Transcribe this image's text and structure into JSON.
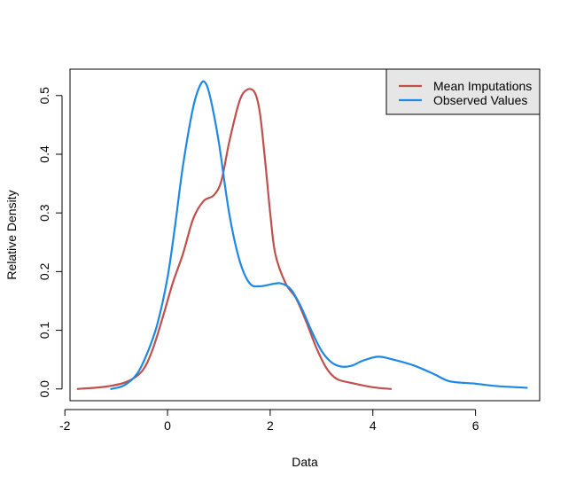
{
  "chart_data": {
    "type": "line",
    "title": "",
    "xlabel": "Data",
    "ylabel": "Relative Density",
    "xlim": [
      -2,
      7
    ],
    "ylim": [
      0,
      0.5
    ],
    "x_ticks": [
      -2,
      0,
      2,
      4,
      6
    ],
    "x_tick_labels": [
      "-2",
      "0",
      "2",
      "4",
      "6"
    ],
    "y_ticks": [
      0.0,
      0.1,
      0.2,
      0.3,
      0.4,
      0.5
    ],
    "y_tick_labels": [
      "0.0",
      "0.1",
      "0.2",
      "0.3",
      "0.4",
      "0.5"
    ],
    "grid": false,
    "legend_position": "top-right",
    "series": [
      {
        "name": "Mean Imputations",
        "color": "#c0504d",
        "points": [
          [
            -1.75,
            0.0
          ],
          [
            -1.2,
            0.004
          ],
          [
            -0.8,
            0.012
          ],
          [
            -0.5,
            0.03
          ],
          [
            -0.3,
            0.065
          ],
          [
            -0.1,
            0.12
          ],
          [
            0.1,
            0.18
          ],
          [
            0.3,
            0.23
          ],
          [
            0.5,
            0.29
          ],
          [
            0.7,
            0.32
          ],
          [
            0.9,
            0.33
          ],
          [
            1.05,
            0.355
          ],
          [
            1.2,
            0.42
          ],
          [
            1.4,
            0.49
          ],
          [
            1.55,
            0.51
          ],
          [
            1.7,
            0.505
          ],
          [
            1.8,
            0.47
          ],
          [
            1.9,
            0.39
          ],
          [
            2.0,
            0.3
          ],
          [
            2.1,
            0.23
          ],
          [
            2.3,
            0.18
          ],
          [
            2.5,
            0.155
          ],
          [
            2.7,
            0.115
          ],
          [
            2.9,
            0.07
          ],
          [
            3.1,
            0.035
          ],
          [
            3.3,
            0.017
          ],
          [
            3.6,
            0.01
          ],
          [
            4.0,
            0.003
          ],
          [
            4.35,
            0.0
          ]
        ]
      },
      {
        "name": "Observed Values",
        "color": "#1e88e5",
        "points": [
          [
            -1.1,
            0.0
          ],
          [
            -0.85,
            0.006
          ],
          [
            -0.6,
            0.025
          ],
          [
            -0.4,
            0.06
          ],
          [
            -0.2,
            0.11
          ],
          [
            0.0,
            0.19
          ],
          [
            0.15,
            0.28
          ],
          [
            0.3,
            0.38
          ],
          [
            0.5,
            0.48
          ],
          [
            0.65,
            0.52
          ],
          [
            0.75,
            0.52
          ],
          [
            0.85,
            0.49
          ],
          [
            1.0,
            0.42
          ],
          [
            1.2,
            0.3
          ],
          [
            1.4,
            0.22
          ],
          [
            1.6,
            0.18
          ],
          [
            1.8,
            0.175
          ],
          [
            2.0,
            0.178
          ],
          [
            2.2,
            0.18
          ],
          [
            2.4,
            0.17
          ],
          [
            2.6,
            0.14
          ],
          [
            2.8,
            0.1
          ],
          [
            3.0,
            0.065
          ],
          [
            3.2,
            0.045
          ],
          [
            3.4,
            0.038
          ],
          [
            3.6,
            0.04
          ],
          [
            3.8,
            0.048
          ],
          [
            4.1,
            0.055
          ],
          [
            4.4,
            0.05
          ],
          [
            4.8,
            0.04
          ],
          [
            5.2,
            0.025
          ],
          [
            5.5,
            0.013
          ],
          [
            6.0,
            0.009
          ],
          [
            6.4,
            0.005
          ],
          [
            7.0,
            0.002
          ]
        ]
      }
    ]
  }
}
